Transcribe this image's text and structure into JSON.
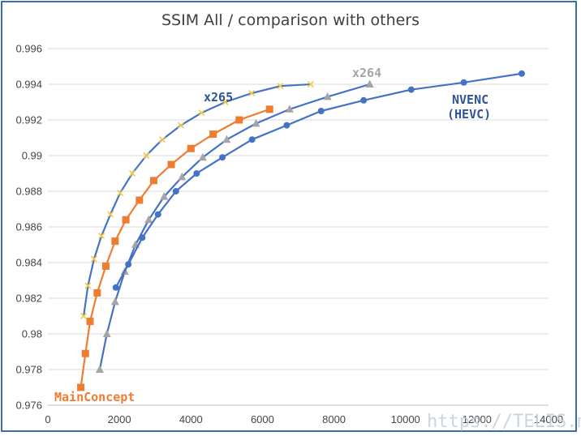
{
  "chart_data": {
    "type": "line",
    "title": "SSIM All / comparison with others",
    "xlabel": "",
    "ylabel": "",
    "xlim": [
      0,
      14000
    ],
    "ylim": [
      0.976,
      0.996
    ],
    "x_ticks": [
      "0",
      "2000",
      "4000",
      "6000",
      "8000",
      "10000",
      "12000",
      "14000"
    ],
    "y_ticks": [
      "0.976",
      "0.978",
      "0.98",
      "0.982",
      "0.984",
      "0.986",
      "0.988",
      "0.99",
      "0.992",
      "0.994",
      "0.996"
    ],
    "grid": "horizontal",
    "legend": "none",
    "series": [
      {
        "name": "MainConcept",
        "color": "#ed7d31",
        "marker": "square",
        "x": [
          920,
          1050,
          1180,
          1380,
          1620,
          1880,
          2180,
          2560,
          2960,
          3450,
          4000,
          4620,
          5350,
          6200
        ],
        "y": [
          0.977,
          0.9789,
          0.9807,
          0.9823,
          0.9838,
          0.9852,
          0.9864,
          0.9875,
          0.9886,
          0.9895,
          0.9904,
          0.9912,
          0.992,
          0.9926
        ]
      },
      {
        "name": "x265",
        "color": "#4472c4",
        "marker": "x",
        "markerColor": "#f2c94c",
        "x": [
          1000,
          1120,
          1290,
          1500,
          1750,
          2020,
          2360,
          2750,
          3200,
          3720,
          4300,
          4960,
          5700,
          6500,
          7350
        ],
        "y": [
          0.981,
          0.9827,
          0.9842,
          0.9855,
          0.9867,
          0.9879,
          0.989,
          0.99,
          0.9909,
          0.9917,
          0.9924,
          0.993,
          0.9935,
          0.9939,
          0.994
        ]
      },
      {
        "name": "x264",
        "color": "#4472c4",
        "marker": "triangle",
        "markerColor": "#a5a5a5",
        "x": [
          1450,
          1650,
          1880,
          2150,
          2450,
          2820,
          3250,
          3750,
          4330,
          5000,
          5820,
          6760,
          7820,
          9000
        ],
        "y": [
          0.978,
          0.98,
          0.9818,
          0.9835,
          0.985,
          0.9864,
          0.9877,
          0.9888,
          0.9899,
          0.9909,
          0.9918,
          0.9926,
          0.9933,
          0.994
        ]
      },
      {
        "name": "NVENC (HEVC)",
        "color": "#4472c4",
        "marker": "circle",
        "x": [
          1900,
          2250,
          2640,
          3080,
          3580,
          4160,
          4880,
          5710,
          6680,
          7640,
          8830,
          10160,
          11630,
          13250
        ],
        "y": [
          0.9826,
          0.9839,
          0.9854,
          0.9867,
          0.988,
          0.989,
          0.9899,
          0.9909,
          0.9917,
          0.9925,
          0.9931,
          0.9937,
          0.9941,
          0.9946
        ]
      }
    ],
    "annotations": [
      {
        "text": "x265",
        "color": "#2f5597"
      },
      {
        "text": "x264",
        "color": "#a5a5a5"
      },
      {
        "text": "NVENC",
        "color": "#2f5597"
      },
      {
        "text": "(HEVC)",
        "color": "#2f5597"
      },
      {
        "text": "MainConcept",
        "color": "#ed7d31"
      }
    ]
  },
  "watermark": "https://TELIS.me"
}
